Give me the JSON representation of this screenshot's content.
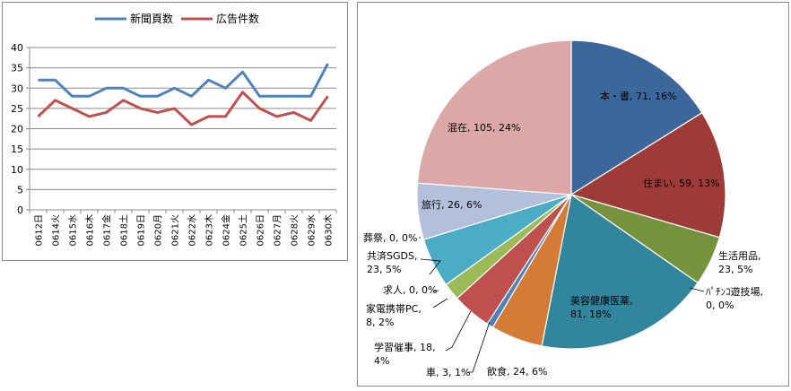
{
  "chart_data": [
    {
      "type": "line",
      "categories": [
        "0612日",
        "0614火",
        "0615水",
        "0616木",
        "0617金",
        "0618土",
        "0619日",
        "0620月",
        "0621火",
        "0622水",
        "0623木",
        "0624金",
        "0625土",
        "0626日",
        "0627月",
        "0628火",
        "0629水",
        "0630木"
      ],
      "series": [
        {
          "name": "新聞頁数",
          "color": "#4f81bd",
          "values": [
            32,
            32,
            28,
            28,
            30,
            30,
            28,
            28,
            30,
            28,
            32,
            30,
            34,
            28,
            28,
            28,
            28,
            36
          ]
        },
        {
          "name": "広告件数",
          "color": "#c0504d",
          "values": [
            23,
            27,
            25,
            23,
            24,
            27,
            25,
            24,
            25,
            21,
            23,
            23,
            29,
            25,
            23,
            24,
            22,
            28
          ]
        }
      ],
      "ylim": [
        0,
        40
      ],
      "yticks": [
        0,
        5,
        10,
        15,
        20,
        25,
        30,
        35,
        40
      ],
      "grid": true,
      "legend": "top"
    },
    {
      "type": "pie",
      "slices": [
        {
          "name": "本・書",
          "value": 71,
          "percent": "16%",
          "color": "#3c679b",
          "label": "本・書, 71, 16%"
        },
        {
          "name": "住まい",
          "value": 59,
          "percent": "13%",
          "color": "#9e3b38",
          "label": "住まい, 59, 13%"
        },
        {
          "name": "生活用品",
          "value": 23,
          "percent": "5%",
          "color": "#76923c",
          "label_lines": [
            "生活用品,",
            "23, 5%"
          ]
        },
        {
          "name": "ﾊﾟﾁﾝｺ遊技場",
          "value": 0,
          "percent": "0%",
          "color": "#5f4b8b",
          "label_lines": [
            "ﾊﾟﾁﾝｺ遊技場,",
            "0, 0%"
          ]
        },
        {
          "name": "美容健康医薬",
          "value": 81,
          "percent": "18%",
          "color": "#31859c",
          "label_lines": [
            "美容健康医薬,",
            "81, 18%"
          ]
        },
        {
          "name": "飲食",
          "value": 24,
          "percent": "6%",
          "color": "#d47b37",
          "label": "飲食, 24, 6%"
        },
        {
          "name": "車",
          "value": 3,
          "percent": "1%",
          "color": "#4f81bd",
          "label": "車, 3, 1%"
        },
        {
          "name": "学習催事",
          "value": 18,
          "percent": "4%",
          "color": "#c0504d",
          "label_lines": [
            "学習催事, 18,",
            "4%"
          ]
        },
        {
          "name": "家電携帯PC",
          "value": 8,
          "percent": "2%",
          "color": "#9bbb59",
          "label_lines": [
            "家電携帯PC,",
            "8, 2%"
          ]
        },
        {
          "name": "求人",
          "value": 0,
          "percent": "0%",
          "color": "#8064a2",
          "label": "求人, 0, 0%"
        },
        {
          "name": "共済SGDS",
          "value": 23,
          "percent": "5%",
          "color": "#4bacc6",
          "label_lines": [
            "共済SGDS,",
            "23, 5%"
          ]
        },
        {
          "name": "葬祭",
          "value": 0,
          "percent": "0%",
          "color": "#f79646",
          "label": "葬祭, 0, 0%"
        },
        {
          "name": "旅行",
          "value": 26,
          "percent": "6%",
          "color": "#b3c0dc",
          "label": "旅行, 26, 6%"
        },
        {
          "name": "混在",
          "value": 105,
          "percent": "24%",
          "color": "#dba8a7",
          "label": "混在, 105, 24%"
        }
      ]
    }
  ]
}
